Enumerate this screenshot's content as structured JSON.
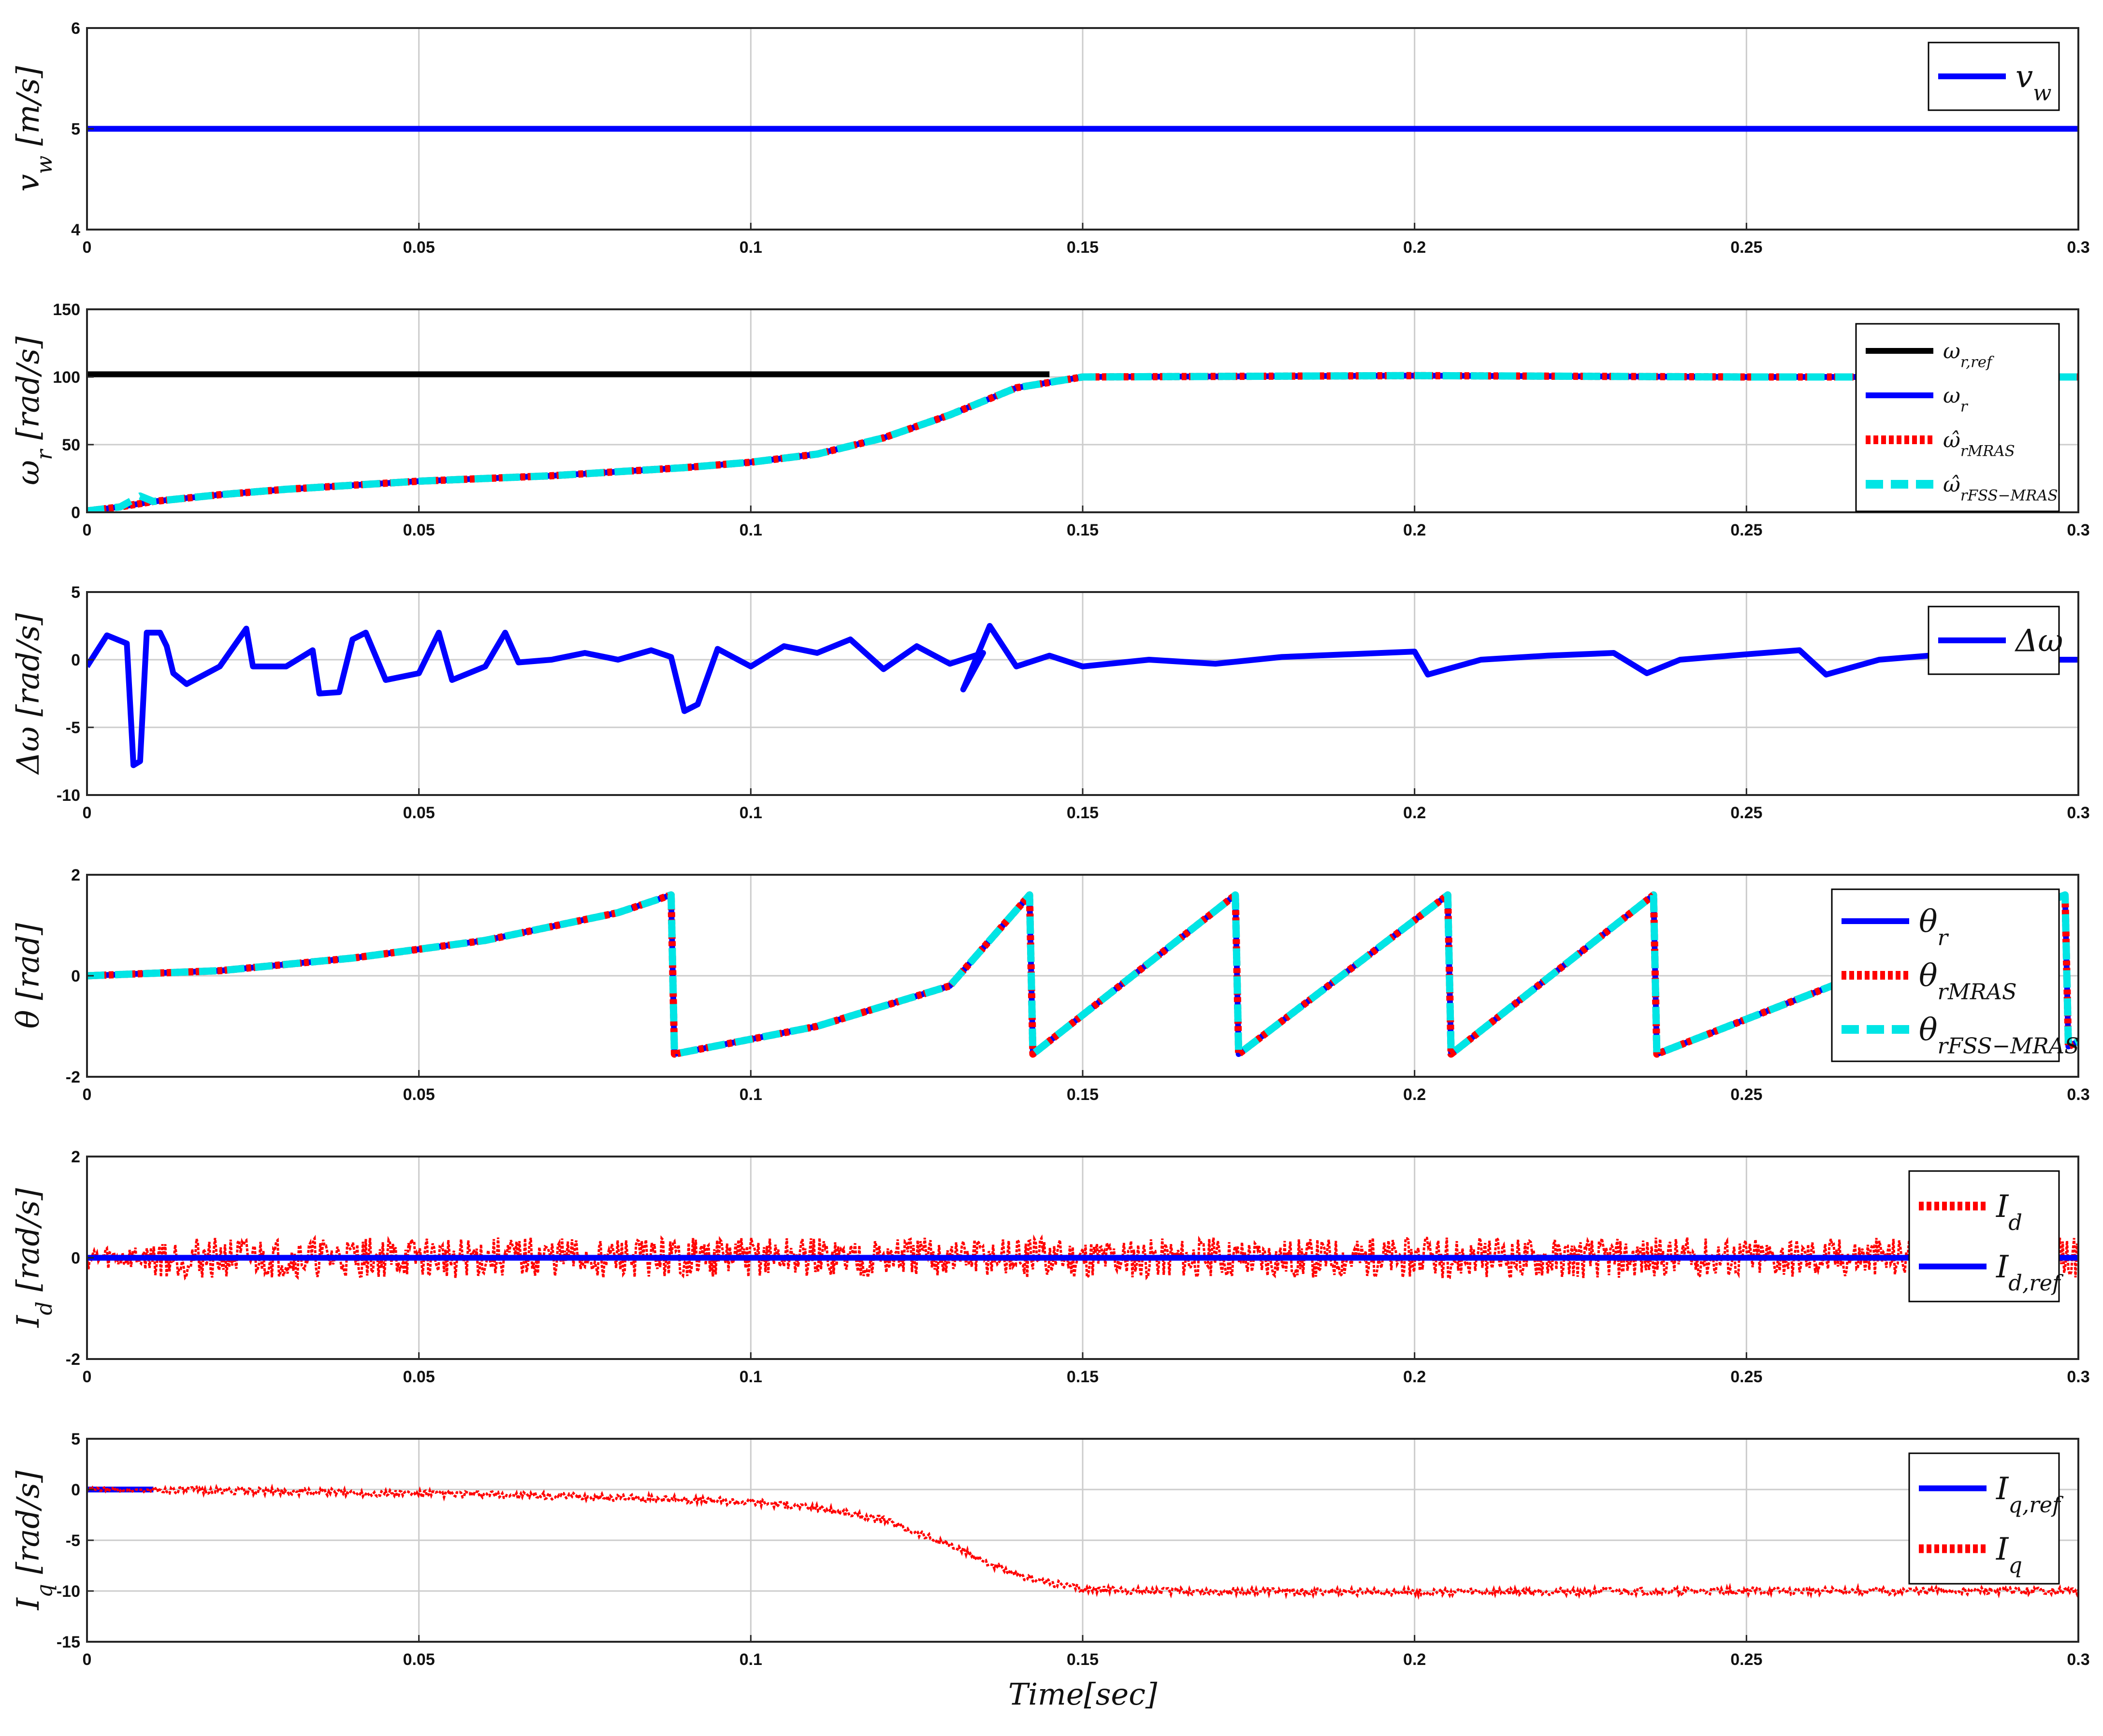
{
  "colors": {
    "blue": "#0000ff",
    "black": "#000000",
    "red": "#ff0000",
    "cyan": "#00e5e5",
    "grid": "#cccccc",
    "axes": "#262626"
  },
  "chart_data": [
    {
      "type": "line",
      "ylabel": "v_w [m/s]",
      "xlabel": "",
      "xlim": [
        0,
        0.3
      ],
      "ylim": [
        4,
        6
      ],
      "xticks": [
        "0",
        "0.05",
        "0.1",
        "0.15",
        "0.2",
        "0.25",
        "0.3"
      ],
      "yticks": [
        "4",
        "5",
        "6"
      ],
      "grid": true,
      "legend_position": "top-right",
      "series": [
        {
          "name": "v_w",
          "color": "#0000ff",
          "style": "solid",
          "points": [
            [
              0,
              5
            ],
            [
              0.3,
              5
            ]
          ]
        }
      ]
    },
    {
      "type": "line",
      "ylabel": "ω_r [rad/s]",
      "xlabel": "",
      "xlim": [
        0,
        0.3
      ],
      "ylim": [
        0,
        150
      ],
      "xticks": [
        "0",
        "0.05",
        "0.1",
        "0.15",
        "0.2",
        "0.25",
        "0.3"
      ],
      "yticks": [
        "0",
        "50",
        "100",
        "150"
      ],
      "grid": true,
      "legend_position": "top-right",
      "series": [
        {
          "name": "ω_r,ref",
          "color": "#000000",
          "style": "solid",
          "points": [
            [
              0,
              102
            ],
            [
              0.145,
              102
            ]
          ]
        },
        {
          "name": "ω_r",
          "color": "#0000ff",
          "style": "solid",
          "points": [
            [
              0,
              1
            ],
            [
              0.005,
              4
            ],
            [
              0.01,
              8
            ],
            [
              0.02,
              13
            ],
            [
              0.03,
              17
            ],
            [
              0.04,
              20
            ],
            [
              0.05,
              23
            ],
            [
              0.06,
              25
            ],
            [
              0.07,
              27
            ],
            [
              0.08,
              30
            ],
            [
              0.09,
              33
            ],
            [
              0.1,
              37
            ],
            [
              0.11,
              43
            ],
            [
              0.12,
              55
            ],
            [
              0.13,
              72
            ],
            [
              0.14,
              92
            ],
            [
              0.15,
              100
            ],
            [
              0.2,
              101
            ],
            [
              0.25,
              100
            ],
            [
              0.3,
              100
            ]
          ]
        },
        {
          "name": "ω̂_rMRAS",
          "color": "#ff0000",
          "style": "dotted",
          "points": [
            [
              0,
              1
            ],
            [
              0.005,
              4
            ],
            [
              0.01,
              8
            ],
            [
              0.02,
              13
            ],
            [
              0.03,
              17
            ],
            [
              0.04,
              20
            ],
            [
              0.05,
              23
            ],
            [
              0.06,
              25
            ],
            [
              0.07,
              27
            ],
            [
              0.08,
              30
            ],
            [
              0.09,
              33
            ],
            [
              0.1,
              37
            ],
            [
              0.11,
              43
            ],
            [
              0.12,
              55
            ],
            [
              0.13,
              72
            ],
            [
              0.14,
              92
            ],
            [
              0.15,
              100
            ],
            [
              0.2,
              101
            ],
            [
              0.25,
              100
            ],
            [
              0.3,
              100
            ]
          ]
        },
        {
          "name": "ω̂_rFSS−MRAS",
          "color": "#00e5e5",
          "style": "dashed",
          "points": [
            [
              0,
              1
            ],
            [
              0.005,
              4
            ],
            [
              0.008,
              12
            ],
            [
              0.01,
              8
            ],
            [
              0.02,
              13
            ],
            [
              0.03,
              17
            ],
            [
              0.04,
              20
            ],
            [
              0.05,
              23
            ],
            [
              0.06,
              25
            ],
            [
              0.07,
              27
            ],
            [
              0.08,
              30
            ],
            [
              0.09,
              33
            ],
            [
              0.1,
              37
            ],
            [
              0.11,
              43
            ],
            [
              0.12,
              55
            ],
            [
              0.13,
              72
            ],
            [
              0.14,
              92
            ],
            [
              0.15,
              100
            ],
            [
              0.2,
              101
            ],
            [
              0.25,
              100
            ],
            [
              0.3,
              100
            ]
          ]
        }
      ]
    },
    {
      "type": "line",
      "ylabel": "Δω [rad/s]",
      "xlabel": "",
      "xlim": [
        0,
        0.3
      ],
      "ylim": [
        -10,
        5
      ],
      "xticks": [
        "0",
        "0.05",
        "0.1",
        "0.15",
        "0.2",
        "0.25",
        "0.3"
      ],
      "yticks": [
        "-10",
        "-5",
        "0",
        "5"
      ],
      "grid": true,
      "legend_position": "top-right",
      "series": [
        {
          "name": "Δω",
          "color": "#0000ff",
          "style": "solid",
          "points": [
            [
              0,
              -0.5
            ],
            [
              0.003,
              1.8
            ],
            [
              0.006,
              1.2
            ],
            [
              0.007,
              -7.8
            ],
            [
              0.008,
              -7.5
            ],
            [
              0.009,
              2
            ],
            [
              0.011,
              2
            ],
            [
              0.012,
              1
            ],
            [
              0.013,
              -1
            ],
            [
              0.015,
              -1.8
            ],
            [
              0.02,
              -0.5
            ],
            [
              0.024,
              2.3
            ],
            [
              0.025,
              -0.5
            ],
            [
              0.03,
              -0.5
            ],
            [
              0.034,
              0.7
            ],
            [
              0.035,
              -2.5
            ],
            [
              0.038,
              -2.4
            ],
            [
              0.04,
              1.5
            ],
            [
              0.042,
              2
            ],
            [
              0.045,
              -1.5
            ],
            [
              0.05,
              -1
            ],
            [
              0.053,
              2
            ],
            [
              0.055,
              -1.5
            ],
            [
              0.06,
              -0.5
            ],
            [
              0.063,
              2
            ],
            [
              0.065,
              -0.2
            ],
            [
              0.07,
              0
            ],
            [
              0.075,
              0.5
            ],
            [
              0.08,
              0
            ],
            [
              0.085,
              0.7
            ],
            [
              0.088,
              0.2
            ],
            [
              0.09,
              -3.8
            ],
            [
              0.092,
              -3.3
            ],
            [
              0.095,
              0.8
            ],
            [
              0.1,
              -0.5
            ],
            [
              0.105,
              1
            ],
            [
              0.11,
              0.5
            ],
            [
              0.115,
              1.5
            ],
            [
              0.12,
              -0.7
            ],
            [
              0.125,
              1
            ],
            [
              0.13,
              -0.3
            ],
            [
              0.135,
              0.5
            ],
            [
              0.132,
              -2.2
            ],
            [
              0.136,
              2.5
            ],
            [
              0.14,
              -0.5
            ],
            [
              0.145,
              0.3
            ],
            [
              0.15,
              -0.5
            ],
            [
              0.16,
              0
            ],
            [
              0.17,
              -0.3
            ],
            [
              0.18,
              0.2
            ],
            [
              0.19,
              0.4
            ],
            [
              0.2,
              0.6
            ],
            [
              0.202,
              -1.1
            ],
            [
              0.21,
              0
            ],
            [
              0.22,
              0.3
            ],
            [
              0.23,
              0.5
            ],
            [
              0.235,
              -1
            ],
            [
              0.24,
              0
            ],
            [
              0.25,
              0.4
            ],
            [
              0.258,
              0.7
            ],
            [
              0.262,
              -1.1
            ],
            [
              0.27,
              0
            ],
            [
              0.28,
              0.4
            ],
            [
              0.29,
              0
            ],
            [
              0.3,
              0
            ]
          ]
        }
      ]
    },
    {
      "type": "line",
      "ylabel": "θ [rad]",
      "xlabel": "",
      "xlim": [
        0,
        0.3
      ],
      "ylim": [
        -2,
        2
      ],
      "xticks": [
        "0",
        "0.05",
        "0.1",
        "0.15",
        "0.2",
        "0.25",
        "0.3"
      ],
      "yticks": [
        "-2",
        "0",
        "2"
      ],
      "grid": true,
      "legend_position": "top-right",
      "series": [
        {
          "name": "θ_r",
          "color": "#0000ff",
          "style": "solid",
          "points": [
            [
              0,
              0
            ],
            [
              0.02,
              0.1
            ],
            [
              0.04,
              0.35
            ],
            [
              0.06,
              0.7
            ],
            [
              0.08,
              1.25
            ],
            [
              0.088,
              1.6
            ],
            [
              0.0885,
              -1.55
            ],
            [
              0.11,
              -1.0
            ],
            [
              0.13,
              -0.2
            ],
            [
              0.142,
              1.6
            ],
            [
              0.1425,
              -1.55
            ],
            [
              0.173,
              1.6
            ],
            [
              0.1735,
              -1.55
            ],
            [
              0.205,
              1.6
            ],
            [
              0.2055,
              -1.55
            ],
            [
              0.236,
              1.6
            ],
            [
              0.2365,
              -1.55
            ],
            [
              0.298,
              1.6
            ],
            [
              0.2985,
              -1.4
            ],
            [
              0.3,
              -1.3
            ]
          ]
        },
        {
          "name": "θ_rMRAS",
          "color": "#ff0000",
          "style": "dotted",
          "points": [
            [
              0,
              0
            ],
            [
              0.02,
              0.1
            ],
            [
              0.04,
              0.35
            ],
            [
              0.06,
              0.7
            ],
            [
              0.08,
              1.25
            ],
            [
              0.088,
              1.6
            ],
            [
              0.0885,
              -1.55
            ],
            [
              0.11,
              -1.0
            ],
            [
              0.13,
              -0.2
            ],
            [
              0.142,
              1.6
            ],
            [
              0.1425,
              -1.55
            ],
            [
              0.173,
              1.6
            ],
            [
              0.1735,
              -1.55
            ],
            [
              0.205,
              1.6
            ],
            [
              0.2055,
              -1.55
            ],
            [
              0.236,
              1.6
            ],
            [
              0.2365,
              -1.55
            ],
            [
              0.298,
              1.6
            ],
            [
              0.2985,
              -1.4
            ],
            [
              0.3,
              -1.3
            ]
          ]
        },
        {
          "name": "θ_rFSS−MRAS",
          "color": "#00e5e5",
          "style": "dashed",
          "points": [
            [
              0,
              0
            ],
            [
              0.02,
              0.1
            ],
            [
              0.04,
              0.35
            ],
            [
              0.06,
              0.7
            ],
            [
              0.08,
              1.25
            ],
            [
              0.088,
              1.6
            ],
            [
              0.0885,
              -1.55
            ],
            [
              0.11,
              -1.0
            ],
            [
              0.13,
              -0.2
            ],
            [
              0.142,
              1.6
            ],
            [
              0.1425,
              -1.55
            ],
            [
              0.173,
              1.6
            ],
            [
              0.1735,
              -1.55
            ],
            [
              0.205,
              1.6
            ],
            [
              0.2055,
              -1.55
            ],
            [
              0.236,
              1.6
            ],
            [
              0.2365,
              -1.55
            ],
            [
              0.298,
              1.6
            ],
            [
              0.2985,
              -1.4
            ],
            [
              0.3,
              -1.3
            ]
          ]
        }
      ]
    },
    {
      "type": "line",
      "ylabel": "I_d [rad/s]",
      "xlabel": "",
      "xlim": [
        0,
        0.3
      ],
      "ylim": [
        -2,
        2
      ],
      "xticks": [
        "0",
        "0.05",
        "0.1",
        "0.15",
        "0.2",
        "0.25",
        "0.3"
      ],
      "yticks": [
        "-2",
        "0",
        "2"
      ],
      "grid": true,
      "legend_position": "top-right",
      "series": [
        {
          "name": "I_d",
          "color": "#ff0000",
          "style": "dotted",
          "noise_band": 0.4,
          "points": [
            [
              0,
              0
            ],
            [
              0.3,
              0
            ]
          ]
        },
        {
          "name": "I_d,ref",
          "color": "#0000ff",
          "style": "solid",
          "points": [
            [
              0,
              0
            ],
            [
              0.3,
              0
            ]
          ]
        }
      ]
    },
    {
      "type": "line",
      "ylabel": "I_q [rad/s]",
      "xlabel": "Time[sec]",
      "xlim": [
        0,
        0.3
      ],
      "ylim": [
        -15,
        5
      ],
      "xticks": [
        "0",
        "0.05",
        "0.1",
        "0.15",
        "0.2",
        "0.25",
        "0.3"
      ],
      "yticks": [
        "-15",
        "-10",
        "-5",
        "0",
        "5"
      ],
      "grid": true,
      "legend_position": "top-right",
      "series": [
        {
          "name": "I_q,ref",
          "color": "#0000ff",
          "style": "solid",
          "points": [
            [
              0,
              0
            ],
            [
              0.01,
              0
            ]
          ]
        },
        {
          "name": "I_q",
          "color": "#ff0000",
          "style": "dotted",
          "noise_band": 0.35,
          "points": [
            [
              0,
              0
            ],
            [
              0.02,
              -0.1
            ],
            [
              0.04,
              -0.3
            ],
            [
              0.06,
              -0.5
            ],
            [
              0.08,
              -0.8
            ],
            [
              0.09,
              -1.0
            ],
            [
              0.1,
              -1.2
            ],
            [
              0.11,
              -1.8
            ],
            [
              0.12,
              -3
            ],
            [
              0.13,
              -5.5
            ],
            [
              0.14,
              -8.5
            ],
            [
              0.15,
              -9.8
            ],
            [
              0.16,
              -10
            ],
            [
              0.2,
              -10.1
            ],
            [
              0.25,
              -10
            ],
            [
              0.3,
              -10
            ]
          ]
        }
      ]
    }
  ]
}
